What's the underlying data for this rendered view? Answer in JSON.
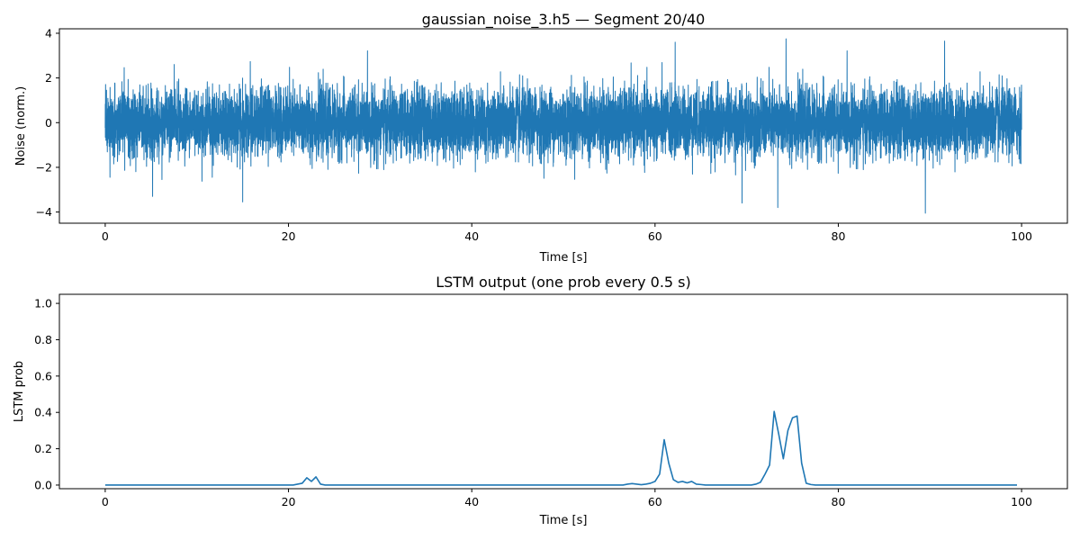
{
  "colors": {
    "series": "#1f77b4",
    "axis": "#000000",
    "background": "#ffffff"
  },
  "chart_data": [
    {
      "type": "line",
      "title": "gaussian_noise_3.h5 — Segment 20/40",
      "xlabel": "Time [s]",
      "ylabel": "Noise (norm.)",
      "xlim": [
        -5,
        105
      ],
      "ylim": [
        -4.5,
        4.2
      ],
      "xticks": [
        0,
        20,
        40,
        60,
        80,
        100
      ],
      "yticks": [
        -4,
        -2,
        0,
        2,
        4
      ],
      "grid": false,
      "series": [
        {
          "description": "Gaussian noise, approximately standard normal, sampled densely from 0 to 100 s",
          "mean": 0,
          "std": 0.75,
          "n_points": 10000,
          "x_range": [
            0,
            100
          ],
          "observed_extremes": [
            {
              "x": 74.3,
              "y": 3.75
            },
            {
              "x": 91.6,
              "y": 3.65
            },
            {
              "x": 62.2,
              "y": 3.6
            },
            {
              "x": 89.5,
              "y": -4.05
            },
            {
              "x": 73.4,
              "y": -3.8
            },
            {
              "x": 15.0,
              "y": -3.55
            },
            {
              "x": 69.5,
              "y": -3.6
            }
          ]
        }
      ]
    },
    {
      "type": "line",
      "title": "LSTM output (one prob every 0.5 s)",
      "xlabel": "Time [s]",
      "ylabel": "LSTM prob",
      "xlim": [
        -5,
        105
      ],
      "ylim": [
        -0.02,
        1.05
      ],
      "xticks": [
        0,
        20,
        40,
        60,
        80,
        100
      ],
      "yticks": [
        0.0,
        0.2,
        0.4,
        0.6,
        0.8,
        1.0
      ],
      "ytick_labels": [
        "0.0",
        "0.2",
        "0.4",
        "0.6",
        "0.8",
        "1.0"
      ],
      "grid": false,
      "series": [
        {
          "x": [
            0,
            20.5,
            21.5,
            22.0,
            22.5,
            23.0,
            23.5,
            24.0,
            56.5,
            57.0,
            57.5,
            58.0,
            58.5,
            59.0,
            59.5,
            60.0,
            60.5,
            61.0,
            61.5,
            62.0,
            62.5,
            63.0,
            63.5,
            64.0,
            64.5,
            65.0,
            65.5,
            70.5,
            71.0,
            71.5,
            72.0,
            72.5,
            73.0,
            73.5,
            74.0,
            74.5,
            75.0,
            75.5,
            76.0,
            76.5,
            77.0,
            77.5,
            99.5
          ],
          "y": [
            0.0,
            0.0,
            0.01,
            0.04,
            0.02,
            0.045,
            0.005,
            0.0,
            0.0,
            0.005,
            0.008,
            0.005,
            0.002,
            0.005,
            0.01,
            0.02,
            0.06,
            0.25,
            0.12,
            0.03,
            0.015,
            0.02,
            0.012,
            0.02,
            0.005,
            0.003,
            0.0,
            0.0,
            0.005,
            0.015,
            0.06,
            0.11,
            0.405,
            0.28,
            0.145,
            0.3,
            0.37,
            0.38,
            0.12,
            0.01,
            0.003,
            0.0,
            0.0
          ]
        }
      ]
    }
  ]
}
